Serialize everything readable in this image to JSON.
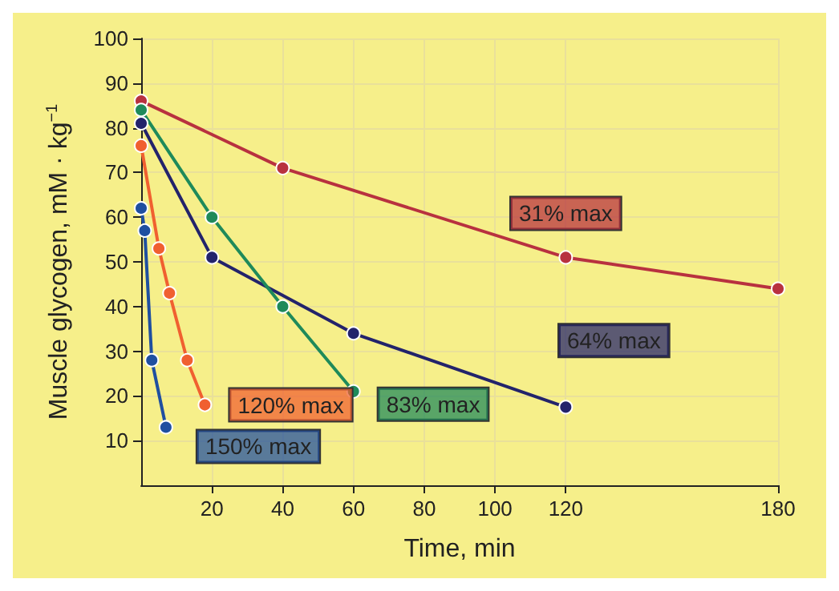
{
  "chart_data": {
    "type": "line",
    "xlabel": "Time, min",
    "ylabel": "Muscle glycogen, mM · kg$^{−1}$",
    "xlim": [
      0,
      180
    ],
    "xticks": [
      20,
      40,
      60,
      80,
      100,
      120,
      180
    ],
    "ylim": [
      0,
      100
    ],
    "yticks": [
      10,
      20,
      30,
      40,
      50,
      60,
      70,
      80,
      90,
      100
    ],
    "grid": true,
    "legend": false,
    "marker": "circle",
    "line_style": "solid",
    "series": [
      {
        "name": "31% max",
        "color": "#b8313f",
        "x": [
          0,
          40,
          120,
          180
        ],
        "values": [
          86,
          71,
          51,
          44
        ]
      },
      {
        "name": "64% max",
        "color": "#23236b",
        "x": [
          0,
          20,
          60,
          120
        ],
        "values": [
          81,
          51,
          34,
          17.5
        ]
      },
      {
        "name": "83% max",
        "color": "#1f8a5a",
        "x": [
          0,
          20,
          40,
          60
        ],
        "values": [
          84,
          60,
          40,
          21
        ]
      },
      {
        "name": "120% max",
        "color": "#f06030",
        "x": [
          0,
          5,
          8,
          13,
          18
        ],
        "values": [
          76,
          53,
          43,
          28,
          18
        ]
      },
      {
        "name": "150% max",
        "color": "#1f4fa0",
        "x": [
          0,
          1,
          3,
          7
        ],
        "values": [
          62,
          57,
          28,
          13
        ]
      }
    ]
  }
}
